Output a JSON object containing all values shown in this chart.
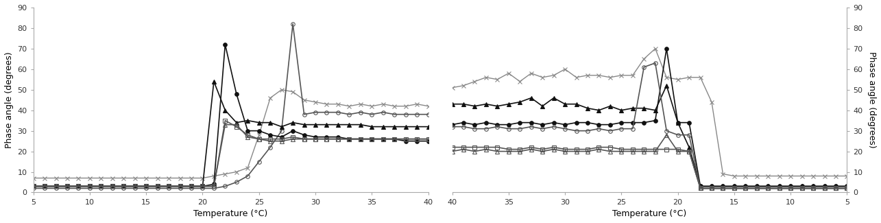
{
  "xlabel": "Temperature (°C)",
  "ylabel_left": "Phase angle (degrees)",
  "ylabel_right": "Phase angle (degrees)",
  "xlim_left": [
    5,
    40
  ],
  "xlim_right": [
    40,
    5
  ],
  "ylim": [
    0,
    90
  ],
  "yticks": [
    0,
    10,
    20,
    30,
    40,
    50,
    60,
    70,
    80,
    90
  ],
  "xticks_left": [
    5,
    10,
    15,
    20,
    25,
    30,
    35,
    40
  ],
  "xticks_right": [
    40,
    35,
    30,
    25,
    20,
    15,
    10,
    5
  ],
  "series_left": {
    "cross": {
      "x": [
        5,
        6,
        7,
        8,
        9,
        10,
        11,
        12,
        13,
        14,
        15,
        16,
        17,
        18,
        19,
        20,
        21,
        22,
        23,
        24,
        25,
        26,
        27,
        28,
        29,
        30,
        31,
        32,
        33,
        34,
        35,
        36,
        37,
        38,
        39,
        40
      ],
      "y": [
        7,
        7,
        7,
        7,
        7,
        7,
        7,
        7,
        7,
        7,
        7,
        7,
        7,
        7,
        7,
        7,
        8,
        9,
        10,
        12,
        28,
        46,
        50,
        49,
        45,
        44,
        43,
        43,
        42,
        43,
        42,
        43,
        42,
        42,
        43,
        42
      ],
      "marker": "x",
      "fillstyle": "full",
      "color": "#888888",
      "linewidth": 1.0,
      "markersize": 4
    },
    "open_circle": {
      "x": [
        5,
        6,
        7,
        8,
        9,
        10,
        11,
        12,
        13,
        14,
        15,
        16,
        17,
        18,
        19,
        20,
        21,
        22,
        23,
        24,
        25,
        26,
        27,
        28,
        29,
        30,
        31,
        32,
        33,
        34,
        35,
        36,
        37,
        38,
        39,
        40
      ],
      "y": [
        2,
        2,
        2,
        2,
        2,
        2,
        2,
        2,
        2,
        2,
        2,
        2,
        2,
        2,
        2,
        2,
        2,
        3,
        5,
        8,
        15,
        22,
        30,
        82,
        38,
        39,
        39,
        39,
        38,
        39,
        38,
        39,
        38,
        38,
        38,
        38
      ],
      "marker": "o",
      "fillstyle": "none",
      "color": "#555555",
      "linewidth": 1.2,
      "markersize": 4
    },
    "filled_circle": {
      "x": [
        5,
        6,
        7,
        8,
        9,
        10,
        11,
        12,
        13,
        14,
        15,
        16,
        17,
        18,
        19,
        20,
        21,
        22,
        23,
        24,
        25,
        26,
        27,
        28,
        29,
        30,
        31,
        32,
        33,
        34,
        35,
        36,
        37,
        38,
        39,
        40
      ],
      "y": [
        3,
        3,
        3,
        3,
        3,
        3,
        3,
        3,
        3,
        3,
        3,
        3,
        3,
        3,
        3,
        3,
        4,
        72,
        48,
        30,
        30,
        28,
        27,
        30,
        28,
        27,
        27,
        27,
        26,
        26,
        26,
        26,
        26,
        25,
        25,
        25
      ],
      "marker": "o",
      "fillstyle": "full",
      "color": "#111111",
      "linewidth": 1.2,
      "markersize": 4
    },
    "filled_triangle": {
      "x": [
        5,
        6,
        7,
        8,
        9,
        10,
        11,
        12,
        13,
        14,
        15,
        16,
        17,
        18,
        19,
        20,
        21,
        22,
        23,
        24,
        25,
        26,
        27,
        28,
        29,
        30,
        31,
        32,
        33,
        34,
        35,
        36,
        37,
        38,
        39,
        40
      ],
      "y": [
        3,
        3,
        3,
        3,
        3,
        3,
        3,
        3,
        3,
        3,
        3,
        3,
        3,
        3,
        3,
        3,
        54,
        40,
        34,
        35,
        34,
        34,
        32,
        34,
        33,
        33,
        33,
        33,
        33,
        33,
        32,
        32,
        32,
        32,
        32,
        32
      ],
      "marker": "^",
      "fillstyle": "full",
      "color": "#111111",
      "linewidth": 1.2,
      "markersize": 4
    },
    "open_square": {
      "x": [
        5,
        6,
        7,
        8,
        9,
        10,
        11,
        12,
        13,
        14,
        15,
        16,
        17,
        18,
        19,
        20,
        21,
        22,
        23,
        24,
        25,
        26,
        27,
        28,
        29,
        30,
        31,
        32,
        33,
        34,
        35,
        36,
        37,
        38,
        39,
        40
      ],
      "y": [
        3,
        3,
        3,
        3,
        3,
        3,
        3,
        3,
        3,
        3,
        3,
        3,
        3,
        3,
        3,
        3,
        3,
        35,
        32,
        28,
        26,
        26,
        26,
        27,
        26,
        26,
        26,
        26,
        26,
        26,
        26,
        26,
        26,
        26,
        26,
        26
      ],
      "marker": "s",
      "fillstyle": "none",
      "color": "#555555",
      "linewidth": 1.2,
      "markersize": 4
    },
    "open_triangle": {
      "x": [
        5,
        6,
        7,
        8,
        9,
        10,
        11,
        12,
        13,
        14,
        15,
        16,
        17,
        18,
        19,
        20,
        21,
        22,
        23,
        24,
        25,
        26,
        27,
        28,
        29,
        30,
        31,
        32,
        33,
        34,
        35,
        36,
        37,
        38,
        39,
        40
      ],
      "y": [
        3,
        3,
        3,
        3,
        3,
        3,
        3,
        3,
        3,
        3,
        3,
        3,
        3,
        3,
        3,
        3,
        3,
        33,
        33,
        27,
        26,
        25,
        25,
        26,
        26,
        26,
        26,
        26,
        26,
        26,
        26,
        26,
        26,
        26,
        26,
        26
      ],
      "marker": "^",
      "fillstyle": "none",
      "color": "#555555",
      "linewidth": 1.2,
      "markersize": 4
    }
  },
  "series_right": {
    "cross": {
      "x": [
        40,
        39,
        38,
        37,
        36,
        35,
        34,
        33,
        32,
        31,
        30,
        29,
        28,
        27,
        26,
        25,
        24,
        23,
        22,
        21,
        20,
        19,
        18,
        17,
        16,
        15,
        14,
        13,
        12,
        11,
        10,
        9,
        8,
        7,
        6,
        5
      ],
      "y": [
        51,
        52,
        54,
        56,
        55,
        58,
        54,
        58,
        56,
        57,
        60,
        56,
        57,
        57,
        56,
        57,
        57,
        65,
        70,
        56,
        55,
        56,
        56,
        44,
        9,
        8,
        8,
        8,
        8,
        8,
        8,
        8,
        8,
        8,
        8,
        8
      ],
      "marker": "x",
      "fillstyle": "full",
      "color": "#888888",
      "linewidth": 1.0,
      "markersize": 4
    },
    "filled_triangle": {
      "x": [
        40,
        39,
        38,
        37,
        36,
        35,
        34,
        33,
        32,
        31,
        30,
        29,
        28,
        27,
        26,
        25,
        24,
        23,
        22,
        21,
        20,
        19,
        18,
        17,
        16,
        15,
        14,
        13,
        12,
        11,
        10,
        9,
        8,
        7,
        6,
        5
      ],
      "y": [
        43,
        43,
        42,
        43,
        42,
        43,
        44,
        46,
        42,
        46,
        43,
        43,
        41,
        40,
        42,
        40,
        41,
        41,
        40,
        52,
        34,
        22,
        3,
        3,
        3,
        3,
        3,
        3,
        3,
        3,
        3,
        3,
        3,
        3,
        3,
        3
      ],
      "marker": "^",
      "fillstyle": "full",
      "color": "#111111",
      "linewidth": 1.2,
      "markersize": 4
    },
    "filled_circle": {
      "x": [
        40,
        39,
        38,
        37,
        36,
        35,
        34,
        33,
        32,
        31,
        30,
        29,
        28,
        27,
        26,
        25,
        24,
        23,
        22,
        21,
        20,
        19,
        18,
        17,
        16,
        15,
        14,
        13,
        12,
        11,
        10,
        9,
        8,
        7,
        6,
        5
      ],
      "y": [
        33,
        34,
        33,
        34,
        33,
        33,
        34,
        34,
        33,
        34,
        33,
        34,
        34,
        33,
        33,
        34,
        34,
        34,
        35,
        70,
        34,
        34,
        3,
        3,
        3,
        3,
        3,
        3,
        3,
        3,
        3,
        3,
        3,
        3,
        3,
        3
      ],
      "marker": "o",
      "fillstyle": "full",
      "color": "#111111",
      "linewidth": 1.2,
      "markersize": 4
    },
    "open_circle": {
      "x": [
        40,
        39,
        38,
        37,
        36,
        35,
        34,
        33,
        32,
        31,
        30,
        29,
        28,
        27,
        26,
        25,
        24,
        23,
        22,
        21,
        20,
        19,
        18,
        17,
        16,
        15,
        14,
        13,
        12,
        11,
        10,
        9,
        8,
        7,
        6,
        5
      ],
      "y": [
        32,
        32,
        31,
        31,
        32,
        31,
        31,
        32,
        31,
        32,
        31,
        30,
        30,
        31,
        30,
        31,
        31,
        61,
        63,
        30,
        28,
        28,
        2,
        2,
        2,
        2,
        2,
        2,
        2,
        2,
        2,
        2,
        2,
        2,
        2,
        2
      ],
      "marker": "o",
      "fillstyle": "none",
      "color": "#555555",
      "linewidth": 1.2,
      "markersize": 4
    },
    "open_square": {
      "x": [
        40,
        39,
        38,
        37,
        36,
        35,
        34,
        33,
        32,
        31,
        30,
        29,
        28,
        27,
        26,
        25,
        24,
        23,
        22,
        21,
        20,
        19,
        18,
        17,
        16,
        15,
        14,
        13,
        12,
        11,
        10,
        9,
        8,
        7,
        6,
        5
      ],
      "y": [
        22,
        22,
        22,
        22,
        22,
        21,
        21,
        22,
        21,
        22,
        21,
        21,
        21,
        22,
        22,
        21,
        21,
        21,
        21,
        21,
        21,
        20,
        2,
        2,
        2,
        2,
        2,
        2,
        2,
        2,
        2,
        2,
        2,
        2,
        2,
        2
      ],
      "marker": "s",
      "fillstyle": "none",
      "color": "#555555",
      "linewidth": 1.2,
      "markersize": 4
    },
    "open_triangle": {
      "x": [
        40,
        39,
        38,
        37,
        36,
        35,
        34,
        33,
        32,
        31,
        30,
        29,
        28,
        27,
        26,
        25,
        24,
        23,
        22,
        21,
        20,
        19,
        18,
        17,
        16,
        15,
        14,
        13,
        12,
        11,
        10,
        9,
        8,
        7,
        6,
        5
      ],
      "y": [
        20,
        21,
        20,
        21,
        20,
        20,
        20,
        21,
        20,
        21,
        20,
        20,
        20,
        21,
        20,
        20,
        20,
        20,
        20,
        28,
        20,
        20,
        2,
        2,
        2,
        2,
        2,
        2,
        2,
        2,
        2,
        2,
        2,
        2,
        2,
        2
      ],
      "marker": "^",
      "fillstyle": "none",
      "color": "#555555",
      "linewidth": 1.2,
      "markersize": 4
    }
  },
  "background_color": "#ffffff"
}
